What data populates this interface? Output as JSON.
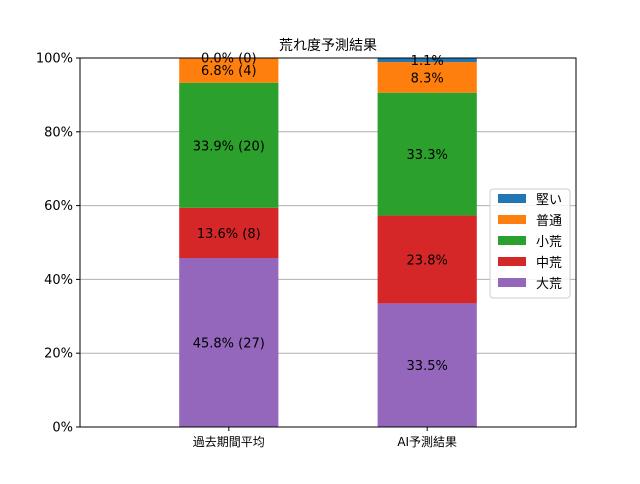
{
  "chart_data": {
    "type": "bar",
    "stacked": true,
    "title": "荒れ度予測結果",
    "xlabel": "",
    "ylabel": "",
    "categories": [
      "過去期間平均",
      "AI予測結果"
    ],
    "ylim": [
      0,
      100
    ],
    "yticks": [
      "0%",
      "20%",
      "40%",
      "60%",
      "80%",
      "100%"
    ],
    "grid": "horizontal",
    "legend_position": "center-right",
    "series": [
      {
        "name": "大荒",
        "color": "#9467bd",
        "values": [
          45.8,
          33.5
        ],
        "labels": [
          "45.8% (27)",
          "33.5%"
        ]
      },
      {
        "name": "中荒",
        "color": "#d62728",
        "values": [
          13.6,
          23.8
        ],
        "labels": [
          "13.6% (8)",
          "23.8%"
        ]
      },
      {
        "name": "小荒",
        "color": "#2ca02c",
        "values": [
          33.9,
          33.3
        ],
        "labels": [
          "33.9% (20)",
          "33.3%"
        ]
      },
      {
        "name": "普通",
        "color": "#ff7f0e",
        "values": [
          6.8,
          8.3
        ],
        "labels": [
          "6.8% (4)",
          "8.3%"
        ]
      },
      {
        "name": "堅い",
        "color": "#1f77b4",
        "values": [
          0.0,
          1.1
        ],
        "labels": [
          "0.0% (0)",
          "1.1%"
        ]
      }
    ],
    "legend_order": [
      "堅い",
      "普通",
      "小荒",
      "中荒",
      "大荒"
    ]
  }
}
